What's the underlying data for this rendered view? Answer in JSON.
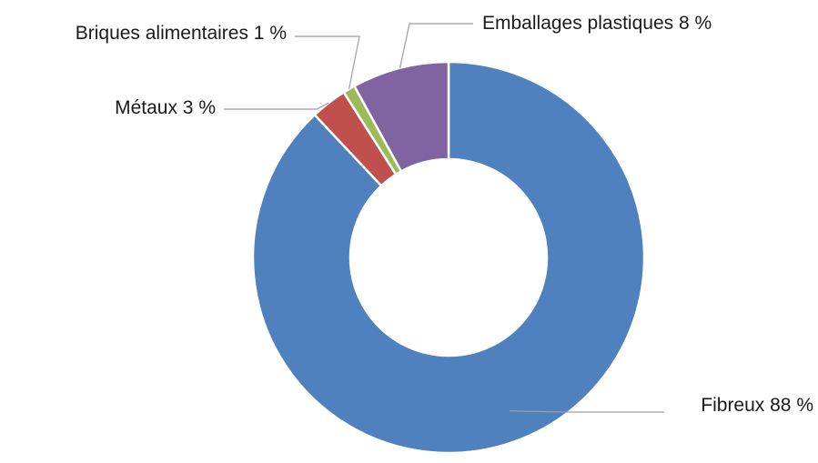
{
  "chart_data": {
    "type": "pie",
    "variant": "donut",
    "title": "",
    "legend": "none",
    "slices": [
      {
        "name": "Fibreux",
        "value": 88,
        "label": "Fibreux 88 %",
        "color": "#4E81BD"
      },
      {
        "name": "Métaux",
        "value": 3,
        "label": "Métaux 3 %",
        "color": "#C0504D"
      },
      {
        "name": "Briques alimentaires",
        "value": 1,
        "label": "Briques alimentaires 1 %",
        "color": "#9BBB59"
      },
      {
        "name": "Emballages plastiques",
        "value": 8,
        "label": "Emballages plastiques 8 %",
        "color": "#8064A2"
      }
    ]
  }
}
